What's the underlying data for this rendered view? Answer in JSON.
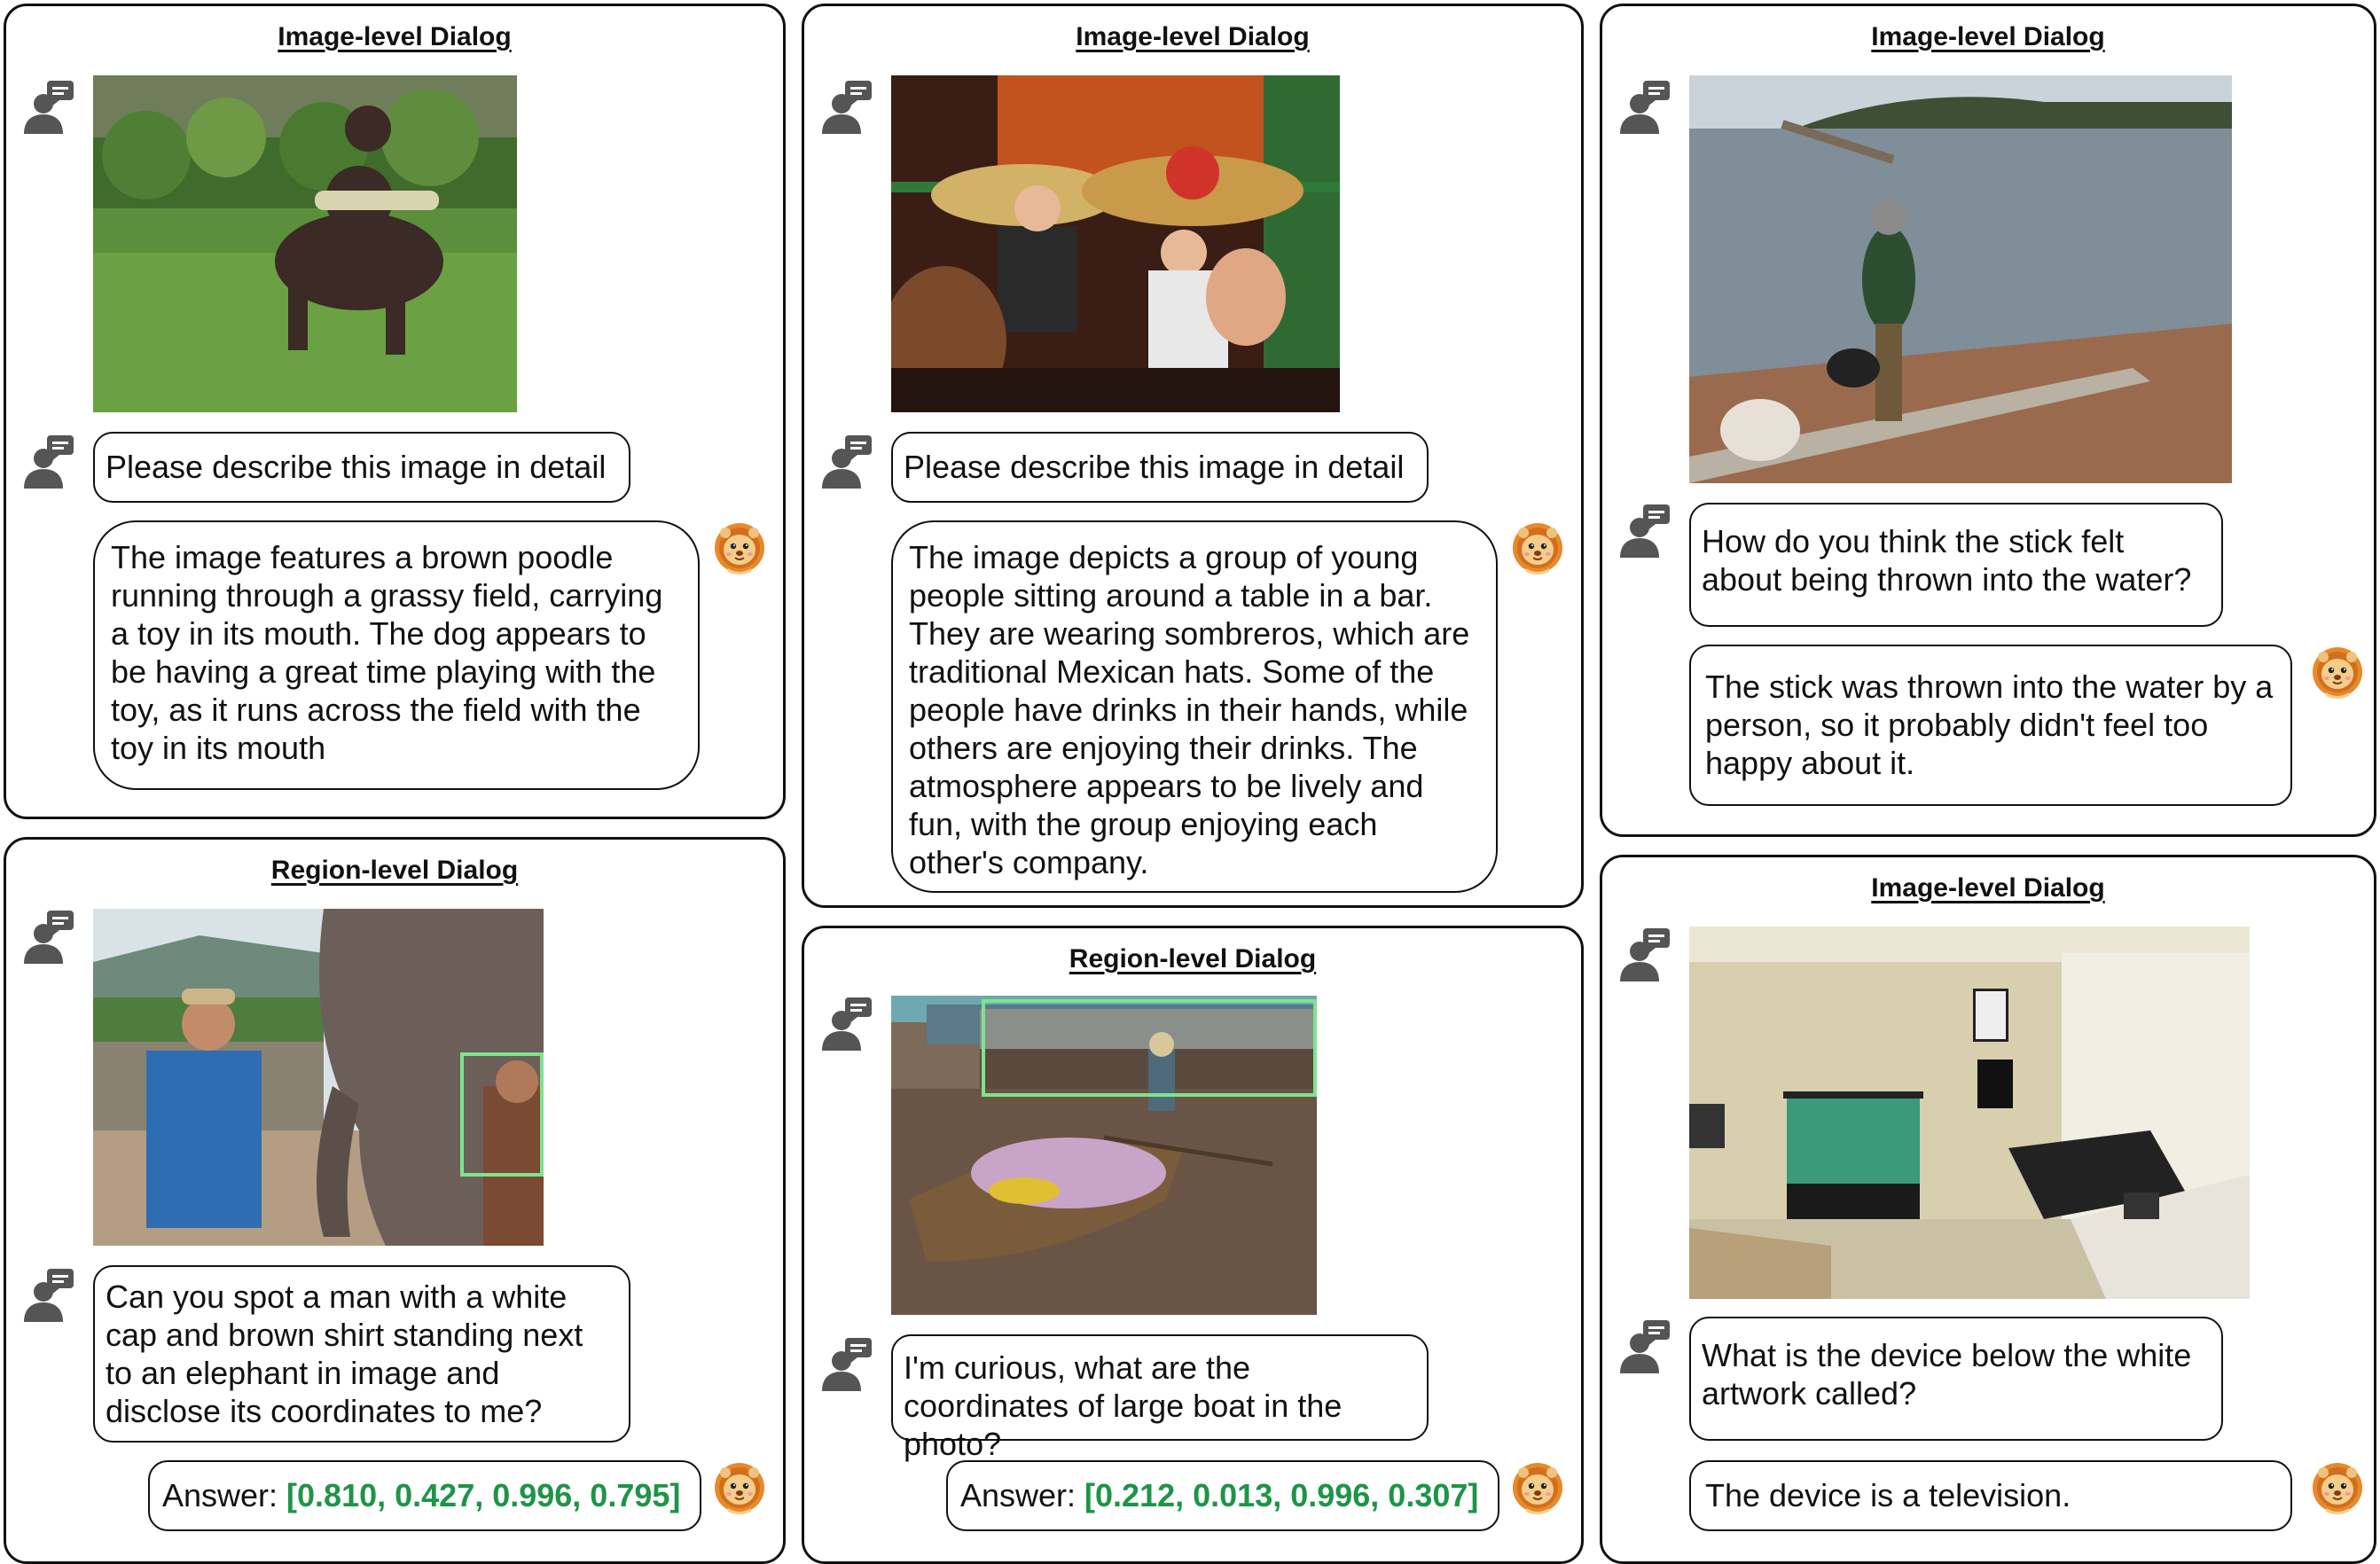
{
  "panels": {
    "p1": {
      "title": "Image-level Dialog",
      "question": "Please describe this image in detail",
      "answer": "The image features a brown poodle running through a grassy field, carrying a toy in its mouth. The dog appears to be having a great time playing with the toy, as it runs across the field with the toy in its mouth"
    },
    "p2": {
      "title": "Image-level Dialog",
      "question": "Please describe this image in detail",
      "answer": "The image depicts a group of young people sitting around a table in a bar. They are wearing sombreros, which are traditional Mexican hats. Some of the people have drinks in their hands, while others are enjoying their drinks. The atmosphere appears to be lively and fun, with the group enjoying each other's company."
    },
    "p3": {
      "title": "Image-level Dialog",
      "question": "How do you think the stick felt about being thrown into the water?",
      "answer": "The stick was thrown into the water by a person, so it probably didn't feel too happy about it."
    },
    "p4": {
      "title": "Region-level Dialog",
      "question": "Can you spot a man with a white cap and brown shirt standing next to an elephant in image and disclose its coordinates to me?",
      "answer_label": "Answer: ",
      "answer_value": "[0.810, 0.427, 0.996, 0.795]"
    },
    "p5": {
      "title": "Region-level Dialog",
      "question": "I'm curious, what are the coordinates of large boat in the photo?",
      "answer_label": "Answer: ",
      "answer_value": "[0.212, 0.013, 0.996, 0.307]"
    },
    "p6": {
      "title": "Image-level Dialog",
      "question": "What is the device below the white artwork called?",
      "answer": "The device is a television."
    }
  },
  "icons": {
    "user": "user-chat-icon",
    "assistant": "lion-avatar-icon"
  },
  "colors": {
    "answer_value": "#1e9448",
    "region_box": "#7fe38f",
    "border": "#111111"
  }
}
